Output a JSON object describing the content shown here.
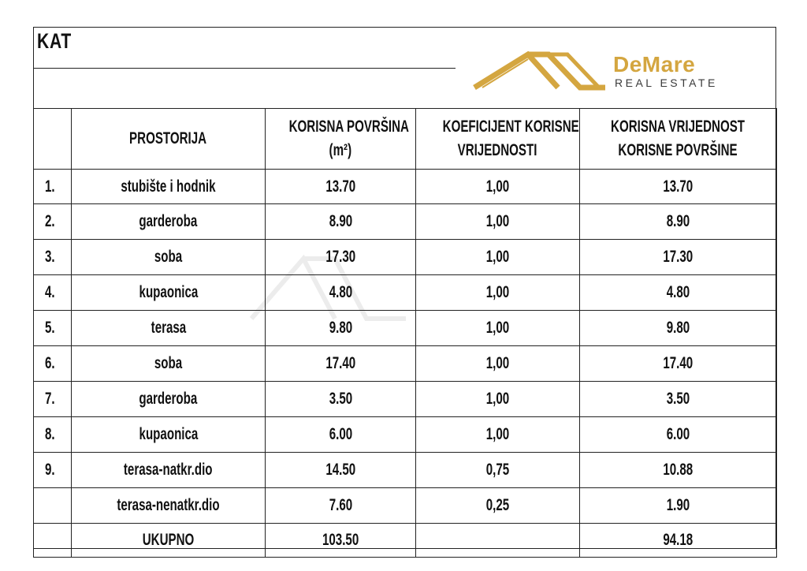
{
  "header": {
    "title": "KAT",
    "brand_name": "DeMare",
    "brand_sub": "REAL ESTATE",
    "brand_color": "#d4a640"
  },
  "table": {
    "columns": [
      "",
      "PROSTORIJA",
      "KORISNA POVRŠINA (m²)",
      "KOEFICIJENT KORISNE VRIJEDNOSTI",
      "KORISNA VRIJEDNOST KORISNE POVRŠINE"
    ],
    "col_header_lines": {
      "c2a": "KORISNA POVRŠINA",
      "c2b": "(m²)",
      "c3a": "KOEFICIJENT KORISNE",
      "c3b": "VRIJEDNOSTI",
      "c4a": "KORISNA VRIJEDNOST",
      "c4b": "KORISNE POVRŠINE"
    },
    "rows": [
      {
        "no": "1.",
        "room": "stubište i hodnik",
        "area": "13.70",
        "coef": "1,00",
        "value": "13.70"
      },
      {
        "no": "2.",
        "room": "garderoba",
        "area": "8.90",
        "coef": "1,00",
        "value": "8.90"
      },
      {
        "no": "3.",
        "room": "soba",
        "area": "17.30",
        "coef": "1,00",
        "value": "17.30"
      },
      {
        "no": "4.",
        "room": "kupaonica",
        "area": "4.80",
        "coef": "1,00",
        "value": "4.80"
      },
      {
        "no": "5.",
        "room": "terasa",
        "area": "9.80",
        "coef": "1,00",
        "value": "9.80"
      },
      {
        "no": "6.",
        "room": "soba",
        "area": "17.40",
        "coef": "1,00",
        "value": "17.40"
      },
      {
        "no": "7.",
        "room": "garderoba",
        "area": "3.50",
        "coef": "1,00",
        "value": "3.50"
      },
      {
        "no": "8.",
        "room": "kupaonica",
        "area": "6.00",
        "coef": "1,00",
        "value": "6.00"
      },
      {
        "no": "9.",
        "room": "terasa-natkr.dio",
        "area": "14.50",
        "coef": "0,75",
        "value": "10.88"
      },
      {
        "no": "",
        "room": "terasa-nenatkr.dio",
        "area": "7.60",
        "coef": "0,25",
        "value": "1.90"
      }
    ],
    "total": {
      "label": "UKUPNO",
      "area": "103.50",
      "coef": "",
      "value": "94.18"
    }
  }
}
